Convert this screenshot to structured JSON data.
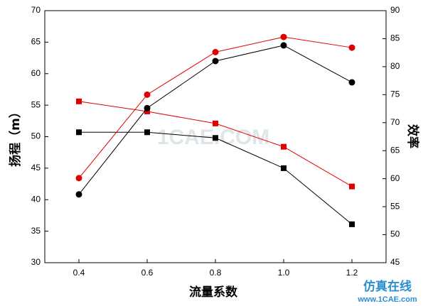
{
  "chart_data": {
    "type": "line",
    "x_label": "流量系数",
    "y_label": "扬程（m）",
    "y2_label": "效率",
    "x": [
      0.4,
      0.6,
      0.8,
      1.0,
      1.2
    ],
    "xlim": [
      0.3,
      1.3
    ],
    "xticks": [
      {
        "value": 0.4,
        "label": "0.4"
      },
      {
        "value": 0.6,
        "label": "0.6"
      },
      {
        "value": 0.8,
        "label": "0.8"
      },
      {
        "value": 1.0,
        "label": "1.0"
      },
      {
        "value": 1.2,
        "label": "1.2"
      }
    ],
    "ylim": [
      30,
      70
    ],
    "yticks": [
      30,
      35,
      40,
      45,
      50,
      55,
      60,
      65,
      70
    ],
    "y2lim": [
      45,
      90
    ],
    "y2ticks": [
      45,
      50,
      55,
      60,
      65,
      70,
      75,
      80,
      85,
      90
    ],
    "series": [
      {
        "color": "#000000",
        "marker": "square",
        "axis": "y",
        "values": [
          50.7,
          50.7,
          49.8,
          45.0,
          36.1
        ]
      },
      {
        "color": "#e00000",
        "marker": "square",
        "axis": "y",
        "values": [
          55.6,
          54.0,
          52.1,
          48.4,
          42.1
        ]
      },
      {
        "color": "#000000",
        "marker": "circle",
        "axis": "y2",
        "values": [
          57.2,
          72.6,
          81.0,
          83.8,
          77.2
        ]
      },
      {
        "color": "#e00000",
        "marker": "circle",
        "axis": "y2",
        "values": [
          60.1,
          75.0,
          82.6,
          85.3,
          83.4
        ]
      }
    ],
    "watermark": "1CAE.COM",
    "footer_brand": "仿真在线",
    "footer_url": "www.1CAE.com"
  }
}
